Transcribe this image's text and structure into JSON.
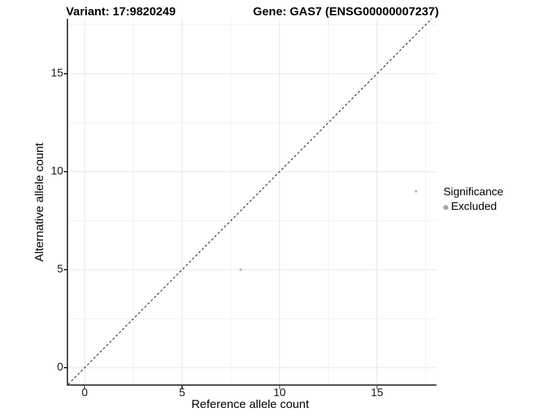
{
  "header": {
    "variant_title": "Variant: 17:9820249",
    "gene_title": "Gene: GAS7 (ENSG00000007237)"
  },
  "chart_data": {
    "type": "scatter",
    "xlabel": "Reference allele count",
    "ylabel": "Alternative allele count",
    "x_ticks": [
      0,
      5,
      10,
      15
    ],
    "y_ticks": [
      0,
      5,
      10,
      15
    ],
    "x_minor": [
      2.5,
      7.5,
      12.5,
      17.5
    ],
    "y_minor": [
      2.5,
      7.5,
      12.5,
      17.5
    ],
    "xlim": [
      -0.85,
      18.05
    ],
    "ylim": [
      -0.85,
      17.8
    ],
    "grid": "major and minor, light grey, on white panel",
    "identity_line": {
      "slope": 1,
      "intercept": 0,
      "style": "dashed",
      "color": "#1a1a1a"
    },
    "series": [
      {
        "name": "Excluded",
        "color": "#bcbcbc",
        "point_radius": 1.9,
        "points": [
          {
            "x": 8,
            "y": 5
          },
          {
            "x": 17,
            "y": 9
          }
        ]
      }
    ],
    "colors": {
      "grid_major": "#e3e3e3",
      "grid_minor": "#f0f0f0",
      "axis_line": "#3d3d3d",
      "tick": "#333333"
    },
    "legend_position": "right"
  },
  "legend": {
    "title": "Significance",
    "entries": [
      {
        "label": "Excluded",
        "color": "#a6a6a6"
      }
    ]
  }
}
